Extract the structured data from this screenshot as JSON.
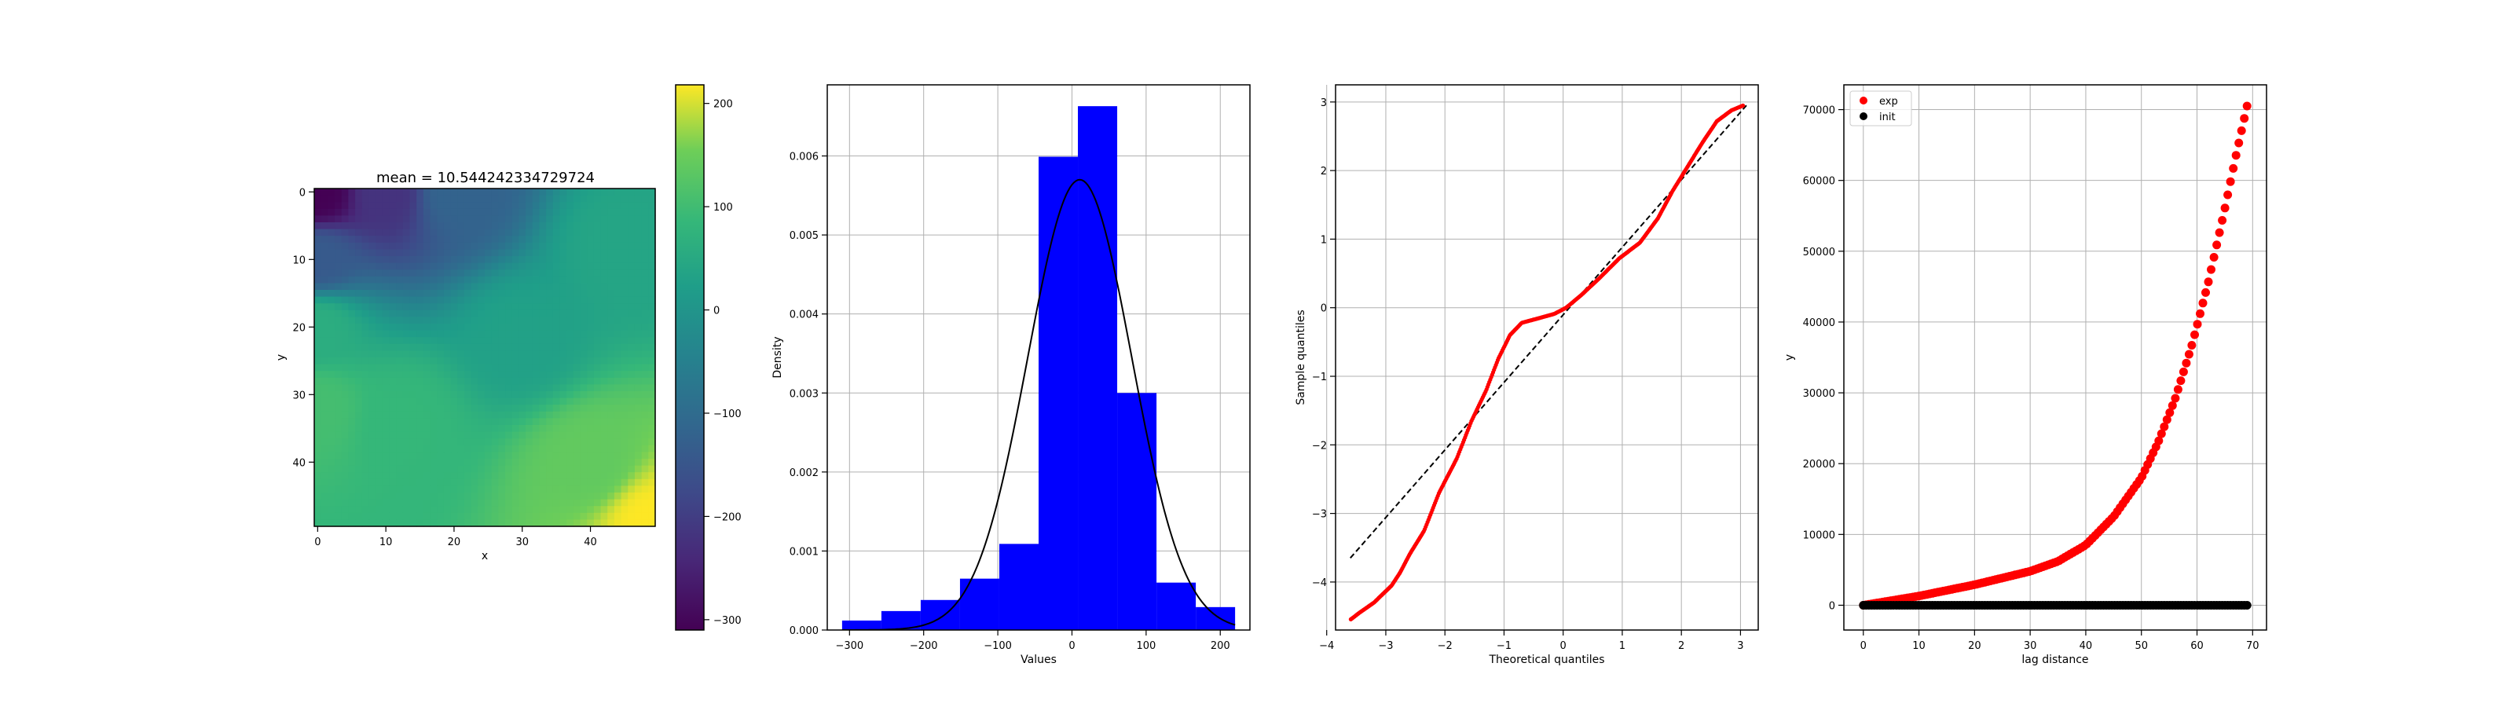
{
  "chart_data": [
    {
      "type": "heatmap",
      "title": "mean = 10.544242334729724",
      "xlabel": "x",
      "ylabel": "y",
      "xlim": [
        -0.5,
        49.5
      ],
      "ylim": [
        49.5,
        -0.5
      ],
      "x_ticks": [
        0,
        10,
        20,
        30,
        40
      ],
      "y_ticks": [
        0,
        10,
        20,
        30,
        40
      ],
      "colormap": "viridis",
      "colorbar": {
        "min": -310,
        "max": 218,
        "ticks": [
          200,
          100,
          0,
          -100,
          -200,
          -300
        ]
      },
      "field_points": [
        {
          "x": 0,
          "y": 0,
          "v": -310
        },
        {
          "x": 10,
          "y": 0,
          "v": -220
        },
        {
          "x": 20,
          "y": 0,
          "v": -120
        },
        {
          "x": 0,
          "y": 10,
          "v": -140
        },
        {
          "x": 0,
          "y": 20,
          "v": 60
        },
        {
          "x": 0,
          "y": 32,
          "v": 105
        },
        {
          "x": 12,
          "y": 34,
          "v": 85
        },
        {
          "x": 30,
          "y": 22,
          "v": 30
        },
        {
          "x": 45,
          "y": 8,
          "v": 40
        },
        {
          "x": 40,
          "y": 40,
          "v": 140
        },
        {
          "x": 49,
          "y": 49,
          "v": 218
        }
      ]
    },
    {
      "type": "bar",
      "subtype": "histogram",
      "xlabel": "Values",
      "ylabel": "Density",
      "xlim": [
        -330,
        240
      ],
      "ylim": [
        0,
        0.0069
      ],
      "x_ticks": [
        -300,
        -200,
        -100,
        0,
        100,
        200
      ],
      "y_ticks": [
        0.0,
        0.001,
        0.002,
        0.003,
        0.004,
        0.005,
        0.006
      ],
      "bins": [
        {
          "x0": -310,
          "x1": -257,
          "density": 0.00012
        },
        {
          "x0": -257,
          "x1": -204,
          "density": 0.00024
        },
        {
          "x0": -204,
          "x1": -151,
          "density": 0.00038
        },
        {
          "x0": -151,
          "x1": -98,
          "density": 0.00065
        },
        {
          "x0": -98,
          "x1": -45,
          "density": 0.00109
        },
        {
          "x0": -45,
          "x1": 8,
          "density": 0.00599
        },
        {
          "x0": 8,
          "x1": 61,
          "density": 0.00663
        },
        {
          "x0": 61,
          "x1": 114,
          "density": 0.003
        },
        {
          "x0": 114,
          "x1": 167,
          "density": 0.0006
        },
        {
          "x0": 167,
          "x1": 220,
          "density": 0.00029
        }
      ],
      "normal_curve": {
        "mean": 10.5,
        "std": 70,
        "x_range": [
          -310,
          220
        ]
      },
      "colors": {
        "bar": "#0000ff",
        "curve": "#000000"
      }
    },
    {
      "type": "scatter",
      "subtype": "qq-plot",
      "xlabel": "Theoretical quantiles",
      "ylabel": "Sample quantiles",
      "xlim": [
        -3.85,
        3.3
      ],
      "ylim": [
        -4.7,
        3.25
      ],
      "x_ticks": [
        -4,
        -3,
        -2,
        -1,
        0,
        1,
        2,
        3
      ],
      "y_ticks": [
        3,
        2,
        1,
        0,
        -1,
        -2,
        -3,
        -4
      ],
      "reference_line": {
        "x": [
          -3.6,
          3.1
        ],
        "y": [
          -3.65,
          2.95
        ]
      },
      "sample_curve": [
        [
          -3.6,
          -4.55
        ],
        [
          -3.45,
          -4.45
        ],
        [
          -3.2,
          -4.3
        ],
        [
          -2.9,
          -4.05
        ],
        [
          -2.75,
          -3.85
        ],
        [
          -2.6,
          -3.6
        ],
        [
          -2.35,
          -3.25
        ],
        [
          -2.1,
          -2.7
        ],
        [
          -1.8,
          -2.2
        ],
        [
          -1.55,
          -1.65
        ],
        [
          -1.3,
          -1.2
        ],
        [
          -1.1,
          -0.75
        ],
        [
          -0.9,
          -0.4
        ],
        [
          -0.7,
          -0.22
        ],
        [
          -0.4,
          -0.15
        ],
        [
          -0.15,
          -0.09
        ],
        [
          0.05,
          0.0
        ],
        [
          0.3,
          0.18
        ],
        [
          0.6,
          0.42
        ],
        [
          0.95,
          0.72
        ],
        [
          1.3,
          0.95
        ],
        [
          1.6,
          1.3
        ],
        [
          1.85,
          1.7
        ],
        [
          2.1,
          2.05
        ],
        [
          2.35,
          2.4
        ],
        [
          2.6,
          2.72
        ],
        [
          2.85,
          2.88
        ],
        [
          3.05,
          2.95
        ]
      ],
      "colors": {
        "points": "#ff0000",
        "line": "#000000"
      }
    },
    {
      "type": "scatter",
      "xlabel": "lag distance",
      "ylabel": "y",
      "xlim": [
        -3.5,
        72.5
      ],
      "ylim": [
        -3500,
        73500
      ],
      "x_ticks": [
        0,
        10,
        20,
        30,
        40,
        50,
        60,
        70
      ],
      "y_ticks": [
        0,
        10000,
        20000,
        30000,
        40000,
        50000,
        60000,
        70000
      ],
      "legend_position": "top-left",
      "series": [
        {
          "name": "exp",
          "color": "#ff0000",
          "curve": [
            [
              0,
              0
            ],
            [
              10,
              1300
            ],
            [
              20,
              2900
            ],
            [
              30,
              4800
            ],
            [
              35,
              6200
            ],
            [
              40,
              8500
            ],
            [
              45,
              12500
            ],
            [
              50,
              18000
            ],
            [
              53,
              23000
            ],
            [
              56,
              29000
            ],
            [
              59,
              36500
            ],
            [
              62,
              45500
            ],
            [
              65,
              56000
            ],
            [
              67,
              63500
            ],
            [
              69,
              70500
            ]
          ]
        },
        {
          "name": "init",
          "color": "#000000",
          "curve": [
            [
              0,
              0
            ],
            [
              69,
              0
            ]
          ]
        }
      ]
    }
  ]
}
